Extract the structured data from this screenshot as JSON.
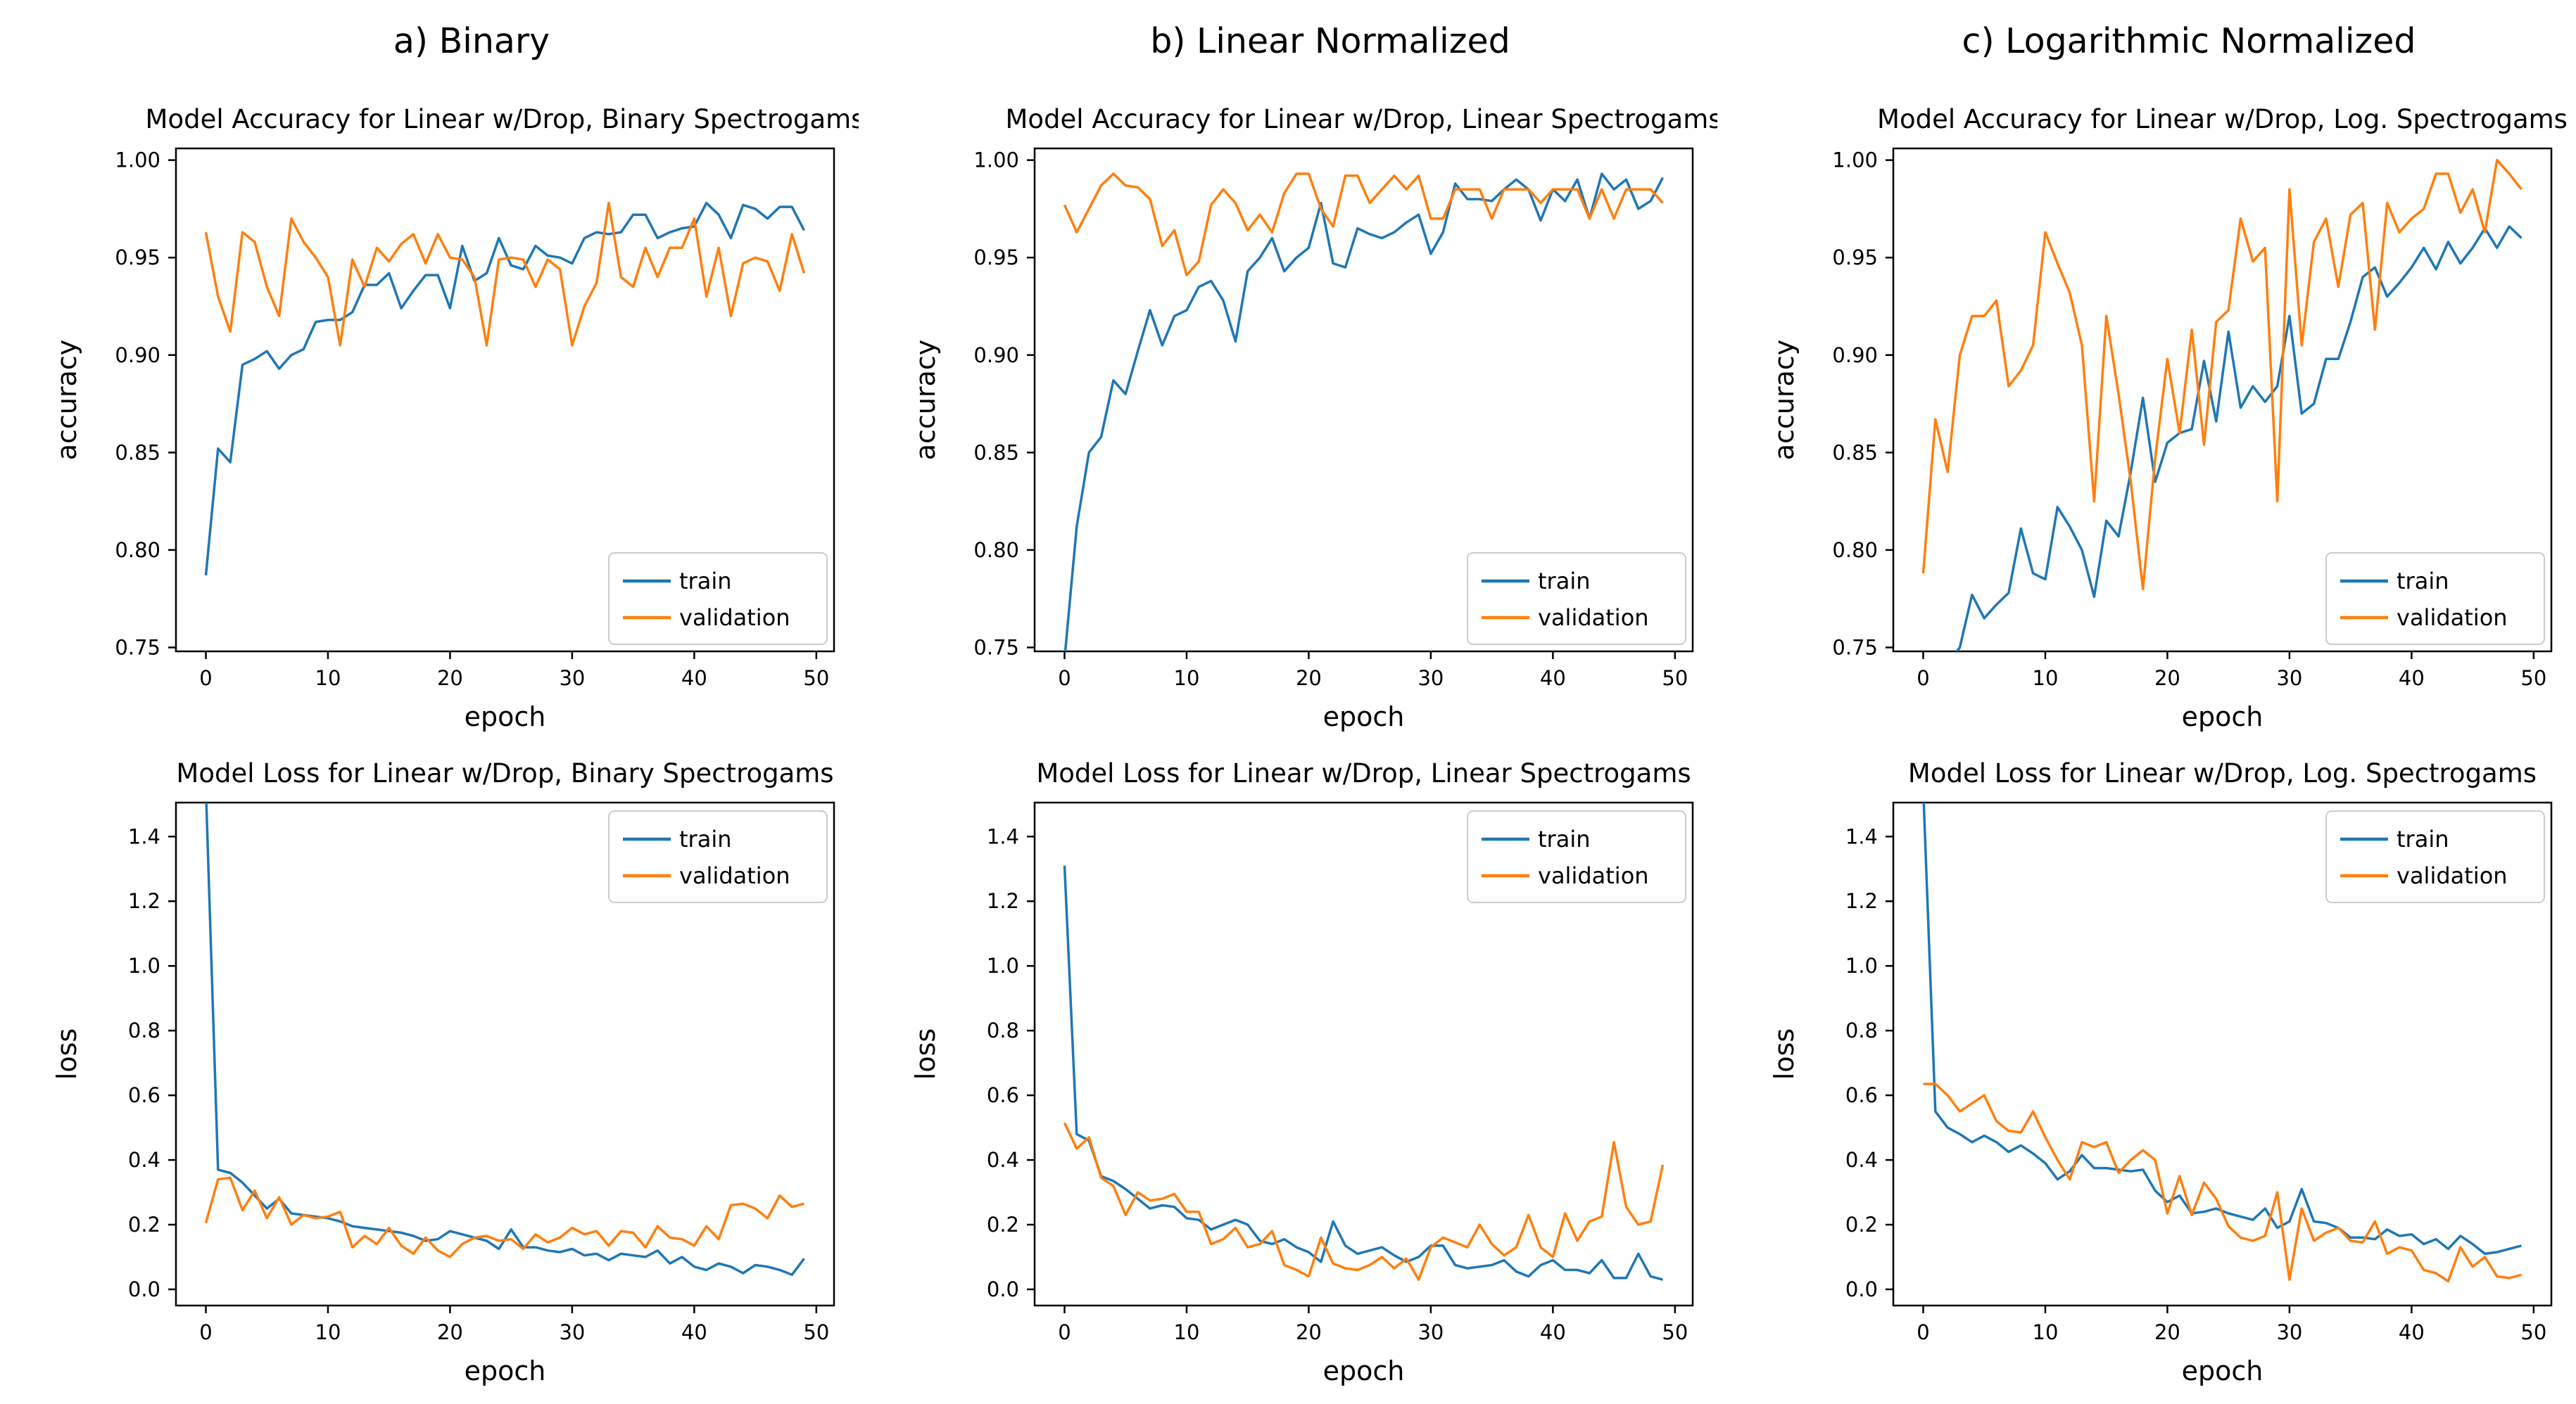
{
  "page": {
    "background": "#ffffff",
    "text_color": "#000000"
  },
  "columns": [
    {
      "label": "a) Binary"
    },
    {
      "label": "b) Linear Normalized"
    },
    {
      "label": "c) Logarithmic Normalized"
    }
  ],
  "colors": {
    "train": "#1f77b4",
    "validation": "#ff7f0e",
    "axis": "#000000",
    "legend_border": "#cccccc"
  },
  "legend": {
    "train_label": "train",
    "validation_label": "validation"
  },
  "chart_data": [
    {
      "type": "line",
      "title": "Model Accuracy for Linear w/Drop, Binary Spectrogams",
      "xlabel": "epoch",
      "ylabel": "accuracy",
      "xlim": [
        -2.45,
        51.45
      ],
      "ylim": [
        0.748,
        1.006
      ],
      "xticks": [
        0,
        10,
        20,
        30,
        40,
        50
      ],
      "xtick_labels": [
        "0",
        "10",
        "20",
        "30",
        "40",
        "50"
      ],
      "yticks": [
        0.75,
        0.8,
        0.85,
        0.9,
        0.95,
        1.0
      ],
      "ytick_labels": [
        "0.75",
        "0.80",
        "0.85",
        "0.90",
        "0.95",
        "1.00"
      ],
      "grid": false,
      "legend_pos": "lower-right",
      "series": [
        {
          "name": "train",
          "color": "#1f77b4",
          "values": [
            0.787,
            0.852,
            0.845,
            0.895,
            0.898,
            0.902,
            0.893,
            0.9,
            0.903,
            0.917,
            0.918,
            0.918,
            0.922,
            0.936,
            0.936,
            0.942,
            0.924,
            0.933,
            0.941,
            0.941,
            0.924,
            0.956,
            0.938,
            0.942,
            0.96,
            0.946,
            0.944,
            0.956,
            0.951,
            0.95,
            0.947,
            0.96,
            0.963,
            0.962,
            0.963,
            0.972,
            0.972,
            0.96,
            0.963,
            0.965,
            0.966,
            0.978,
            0.972,
            0.96,
            0.977,
            0.975,
            0.97,
            0.976,
            0.976,
            0.964
          ]
        },
        {
          "name": "validation",
          "color": "#ff7f0e",
          "values": [
            0.963,
            0.93,
            0.912,
            0.963,
            0.958,
            0.935,
            0.92,
            0.97,
            0.958,
            0.95,
            0.94,
            0.905,
            0.949,
            0.935,
            0.955,
            0.948,
            0.957,
            0.962,
            0.947,
            0.962,
            0.95,
            0.949,
            0.94,
            0.905,
            0.949,
            0.95,
            0.949,
            0.935,
            0.949,
            0.944,
            0.905,
            0.925,
            0.937,
            0.978,
            0.94,
            0.935,
            0.955,
            0.94,
            0.955,
            0.955,
            0.97,
            0.93,
            0.955,
            0.92,
            0.947,
            0.95,
            0.948,
            0.933,
            0.962,
            0.942
          ]
        }
      ]
    },
    {
      "type": "line",
      "title": "Model Accuracy for Linear w/Drop, Linear Spectrogams",
      "xlabel": "epoch",
      "ylabel": "accuracy",
      "xlim": [
        -2.45,
        51.45
      ],
      "ylim": [
        0.748,
        1.006
      ],
      "xticks": [
        0,
        10,
        20,
        30,
        40,
        50
      ],
      "xtick_labels": [
        "0",
        "10",
        "20",
        "30",
        "40",
        "50"
      ],
      "yticks": [
        0.75,
        0.8,
        0.85,
        0.9,
        0.95,
        1.0
      ],
      "ytick_labels": [
        "0.75",
        "0.80",
        "0.85",
        "0.90",
        "0.95",
        "1.00"
      ],
      "grid": false,
      "legend_pos": "lower-right",
      "series": [
        {
          "name": "train",
          "color": "#1f77b4",
          "values": [
            0.744,
            0.812,
            0.85,
            0.858,
            0.887,
            0.88,
            0.902,
            0.923,
            0.905,
            0.92,
            0.923,
            0.935,
            0.938,
            0.928,
            0.907,
            0.943,
            0.95,
            0.96,
            0.943,
            0.95,
            0.955,
            0.978,
            0.947,
            0.945,
            0.965,
            0.962,
            0.96,
            0.963,
            0.968,
            0.972,
            0.952,
            0.963,
            0.988,
            0.98,
            0.98,
            0.979,
            0.985,
            0.99,
            0.985,
            0.969,
            0.985,
            0.979,
            0.99,
            0.97,
            0.993,
            0.985,
            0.99,
            0.975,
            0.979,
            0.991
          ]
        },
        {
          "name": "validation",
          "color": "#ff7f0e",
          "values": [
            0.977,
            0.963,
            0.975,
            0.987,
            0.993,
            0.987,
            0.986,
            0.98,
            0.956,
            0.964,
            0.941,
            0.948,
            0.977,
            0.985,
            0.978,
            0.964,
            0.972,
            0.963,
            0.983,
            0.993,
            0.993,
            0.975,
            0.966,
            0.992,
            0.992,
            0.978,
            0.985,
            0.992,
            0.985,
            0.992,
            0.97,
            0.97,
            0.985,
            0.985,
            0.985,
            0.97,
            0.985,
            0.985,
            0.985,
            0.978,
            0.985,
            0.985,
            0.985,
            0.97,
            0.985,
            0.97,
            0.985,
            0.985,
            0.985,
            0.978
          ]
        }
      ]
    },
    {
      "type": "line",
      "title": "Model Accuracy for Linear w/Drop, Log. Spectrogams",
      "xlabel": "epoch",
      "ylabel": "accuracy",
      "xlim": [
        -2.45,
        51.45
      ],
      "ylim": [
        0.748,
        1.006
      ],
      "xticks": [
        0,
        10,
        20,
        30,
        40,
        50
      ],
      "xtick_labels": [
        "0",
        "10",
        "20",
        "30",
        "40",
        "50"
      ],
      "yticks": [
        0.75,
        0.8,
        0.85,
        0.9,
        0.95,
        1.0
      ],
      "ytick_labels": [
        "0.75",
        "0.80",
        "0.85",
        "0.90",
        "0.95",
        "1.00"
      ],
      "grid": false,
      "legend_pos": "lower-right",
      "series": [
        {
          "name": "train",
          "color": "#1f77b4",
          "values": [
            0.72,
            0.733,
            0.742,
            0.75,
            0.777,
            0.765,
            0.772,
            0.778,
            0.811,
            0.788,
            0.785,
            0.822,
            0.812,
            0.8,
            0.776,
            0.815,
            0.807,
            0.84,
            0.878,
            0.835,
            0.855,
            0.86,
            0.862,
            0.897,
            0.866,
            0.912,
            0.873,
            0.884,
            0.876,
            0.884,
            0.92,
            0.87,
            0.875,
            0.898,
            0.898,
            0.917,
            0.94,
            0.945,
            0.93,
            0.937,
            0.945,
            0.955,
            0.944,
            0.958,
            0.947,
            0.955,
            0.965,
            0.955,
            0.966,
            0.96
          ]
        },
        {
          "name": "validation",
          "color": "#ff7f0e",
          "values": [
            0.788,
            0.867,
            0.84,
            0.9,
            0.92,
            0.92,
            0.928,
            0.884,
            0.892,
            0.905,
            0.963,
            0.947,
            0.932,
            0.905,
            0.825,
            0.92,
            0.88,
            0.835,
            0.78,
            0.847,
            0.898,
            0.86,
            0.913,
            0.854,
            0.917,
            0.923,
            0.97,
            0.948,
            0.955,
            0.825,
            0.985,
            0.905,
            0.958,
            0.97,
            0.935,
            0.972,
            0.978,
            0.913,
            0.978,
            0.963,
            0.97,
            0.975,
            0.993,
            0.993,
            0.973,
            0.985,
            0.963,
            1.0,
            0.993,
            0.985
          ]
        }
      ]
    },
    {
      "type": "line",
      "title": "Model Loss for Linear w/Drop, Binary Spectrogams",
      "xlabel": "epoch",
      "ylabel": "loss",
      "xlim": [
        -2.45,
        51.45
      ],
      "ylim": [
        -0.05,
        1.505
      ],
      "xticks": [
        0,
        10,
        20,
        30,
        40,
        50
      ],
      "xtick_labels": [
        "0",
        "10",
        "20",
        "30",
        "40",
        "50"
      ],
      "yticks": [
        0.0,
        0.2,
        0.4,
        0.6,
        0.8,
        1.0,
        1.2,
        1.4
      ],
      "ytick_labels": [
        "0.0",
        "0.2",
        "0.4",
        "0.6",
        "0.8",
        "1.0",
        "1.2",
        "1.4"
      ],
      "grid": false,
      "legend_pos": "upper-right",
      "series": [
        {
          "name": "train",
          "color": "#1f77b4",
          "values": [
            1.55,
            0.37,
            0.36,
            0.33,
            0.29,
            0.25,
            0.28,
            0.235,
            0.23,
            0.225,
            0.22,
            0.21,
            0.195,
            0.19,
            0.185,
            0.18,
            0.175,
            0.165,
            0.15,
            0.155,
            0.18,
            0.17,
            0.16,
            0.15,
            0.125,
            0.185,
            0.13,
            0.13,
            0.12,
            0.115,
            0.125,
            0.105,
            0.11,
            0.09,
            0.11,
            0.105,
            0.1,
            0.12,
            0.08,
            0.1,
            0.07,
            0.06,
            0.08,
            0.07,
            0.05,
            0.075,
            0.07,
            0.06,
            0.045,
            0.095
          ]
        },
        {
          "name": "validation",
          "color": "#ff7f0e",
          "values": [
            0.205,
            0.34,
            0.345,
            0.245,
            0.305,
            0.22,
            0.285,
            0.2,
            0.23,
            0.22,
            0.225,
            0.24,
            0.13,
            0.165,
            0.14,
            0.19,
            0.135,
            0.11,
            0.16,
            0.12,
            0.1,
            0.14,
            0.16,
            0.165,
            0.15,
            0.155,
            0.125,
            0.17,
            0.145,
            0.16,
            0.19,
            0.17,
            0.18,
            0.135,
            0.18,
            0.175,
            0.13,
            0.195,
            0.16,
            0.155,
            0.135,
            0.195,
            0.155,
            0.26,
            0.265,
            0.25,
            0.22,
            0.29,
            0.255,
            0.265
          ]
        }
      ]
    },
    {
      "type": "line",
      "title": "Model Loss for Linear w/Drop, Linear Spectrogams",
      "xlabel": "epoch",
      "ylabel": "loss",
      "xlim": [
        -2.45,
        51.45
      ],
      "ylim": [
        -0.05,
        1.505
      ],
      "xticks": [
        0,
        10,
        20,
        30,
        40,
        50
      ],
      "xtick_labels": [
        "0",
        "10",
        "20",
        "30",
        "40",
        "50"
      ],
      "yticks": [
        0.0,
        0.2,
        0.4,
        0.6,
        0.8,
        1.0,
        1.2,
        1.4
      ],
      "ytick_labels": [
        "0.0",
        "0.2",
        "0.4",
        "0.6",
        "0.8",
        "1.0",
        "1.2",
        "1.4"
      ],
      "grid": false,
      "legend_pos": "upper-right",
      "series": [
        {
          "name": "train",
          "color": "#1f77b4",
          "values": [
            1.31,
            0.48,
            0.46,
            0.35,
            0.335,
            0.31,
            0.28,
            0.25,
            0.26,
            0.255,
            0.22,
            0.215,
            0.185,
            0.2,
            0.215,
            0.2,
            0.15,
            0.14,
            0.155,
            0.13,
            0.115,
            0.085,
            0.21,
            0.135,
            0.11,
            0.12,
            0.13,
            0.105,
            0.085,
            0.1,
            0.135,
            0.135,
            0.075,
            0.065,
            0.07,
            0.075,
            0.09,
            0.055,
            0.04,
            0.075,
            0.09,
            0.06,
            0.06,
            0.05,
            0.09,
            0.035,
            0.035,
            0.11,
            0.04,
            0.03
          ]
        },
        {
          "name": "validation",
          "color": "#ff7f0e",
          "values": [
            0.515,
            0.435,
            0.47,
            0.345,
            0.32,
            0.23,
            0.3,
            0.275,
            0.28,
            0.295,
            0.24,
            0.24,
            0.14,
            0.155,
            0.19,
            0.13,
            0.14,
            0.18,
            0.075,
            0.06,
            0.04,
            0.16,
            0.08,
            0.065,
            0.06,
            0.075,
            0.1,
            0.065,
            0.095,
            0.03,
            0.13,
            0.16,
            0.145,
            0.13,
            0.2,
            0.14,
            0.105,
            0.13,
            0.23,
            0.13,
            0.1,
            0.235,
            0.15,
            0.21,
            0.225,
            0.455,
            0.255,
            0.2,
            0.21,
            0.385
          ]
        }
      ]
    },
    {
      "type": "line",
      "title": "Model Loss for Linear w/Drop, Log. Spectrogams",
      "xlabel": "epoch",
      "ylabel": "loss",
      "xlim": [
        -2.45,
        51.45
      ],
      "ylim": [
        -0.05,
        1.505
      ],
      "xticks": [
        0,
        10,
        20,
        30,
        40,
        50
      ],
      "xtick_labels": [
        "0",
        "10",
        "20",
        "30",
        "40",
        "50"
      ],
      "yticks": [
        0.0,
        0.2,
        0.4,
        0.6,
        0.8,
        1.0,
        1.2,
        1.4
      ],
      "ytick_labels": [
        "0.0",
        "0.2",
        "0.4",
        "0.6",
        "0.8",
        "1.0",
        "1.2",
        "1.4"
      ],
      "grid": false,
      "legend_pos": "upper-right",
      "series": [
        {
          "name": "train",
          "color": "#1f77b4",
          "values": [
            1.55,
            0.55,
            0.5,
            0.48,
            0.455,
            0.475,
            0.455,
            0.425,
            0.445,
            0.42,
            0.39,
            0.34,
            0.365,
            0.415,
            0.375,
            0.375,
            0.37,
            0.365,
            0.37,
            0.305,
            0.27,
            0.29,
            0.235,
            0.24,
            0.25,
            0.235,
            0.225,
            0.215,
            0.25,
            0.19,
            0.21,
            0.31,
            0.21,
            0.205,
            0.19,
            0.16,
            0.16,
            0.155,
            0.185,
            0.165,
            0.17,
            0.14,
            0.155,
            0.125,
            0.165,
            0.14,
            0.11,
            0.115,
            0.125,
            0.135
          ]
        },
        {
          "name": "validation",
          "color": "#ff7f0e",
          "values": [
            0.635,
            0.635,
            0.6,
            0.55,
            0.575,
            0.6,
            0.52,
            0.49,
            0.485,
            0.55,
            0.47,
            0.4,
            0.34,
            0.455,
            0.44,
            0.455,
            0.36,
            0.4,
            0.43,
            0.4,
            0.235,
            0.35,
            0.23,
            0.33,
            0.28,
            0.195,
            0.16,
            0.15,
            0.165,
            0.3,
            0.03,
            0.25,
            0.15,
            0.175,
            0.19,
            0.15,
            0.145,
            0.21,
            0.11,
            0.13,
            0.12,
            0.06,
            0.05,
            0.025,
            0.13,
            0.07,
            0.1,
            0.04,
            0.035,
            0.045
          ]
        }
      ]
    }
  ]
}
